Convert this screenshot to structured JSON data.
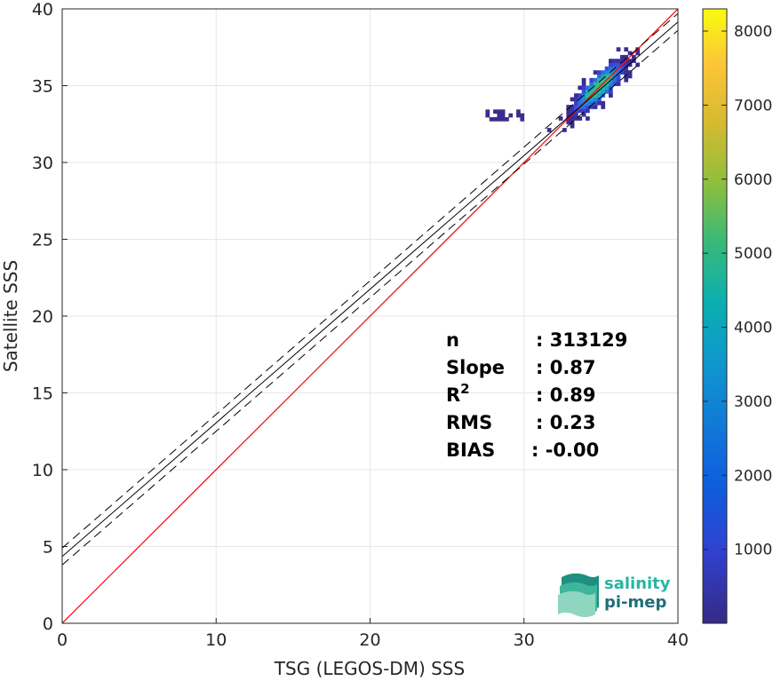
{
  "chart_data": {
    "type": "heatmap",
    "xlabel": "TSG (LEGOS-DM) SSS",
    "ylabel": "Satellite SSS",
    "xlim": [
      0,
      40
    ],
    "ylim": [
      0,
      40
    ],
    "xticks": [
      "0",
      "10",
      "20",
      "30",
      "40"
    ],
    "yticks": [
      "0",
      "5",
      "10",
      "15",
      "20",
      "25",
      "30",
      "35",
      "40"
    ],
    "grid": true,
    "colormap": "parula",
    "colorbar": {
      "range": [
        1,
        8300
      ],
      "ticks": [
        "1000",
        "2000",
        "3000",
        "4000",
        "5000",
        "6000",
        "7000",
        "8000"
      ]
    },
    "reference_line": {
      "color": "#ff0000",
      "slope": 1,
      "intercept": 0
    },
    "fit_line": {
      "color": "#000000",
      "slope": 0.87,
      "intercept": 4.35
    },
    "fit_bounds": {
      "style": "dashed",
      "color": "#000000",
      "offset": 0.55
    },
    "density_cluster": {
      "x_range": [
        31.5,
        37.5
      ],
      "y_range": [
        31.5,
        37.3
      ],
      "peak": [
        35.0,
        34.9
      ],
      "secondary_patch": {
        "x_range": [
          27.5,
          30.5
        ],
        "y_range": [
          32.7,
          33.3
        ]
      }
    },
    "stats": [
      {
        "label": "n",
        "value": ": 313129"
      },
      {
        "label": "Slope",
        "value": ": 0.87"
      },
      {
        "label": "R",
        "sup": "2",
        "value": ": 0.89"
      },
      {
        "label": "RMS",
        "value": ": 0.23"
      },
      {
        "label": "BIAS",
        "value": ": -0.00"
      }
    ]
  },
  "logo": {
    "line1": "salinity",
    "line2": "pi-mep",
    "color1": "#2ab5a3",
    "color2": "#1f6e78"
  }
}
